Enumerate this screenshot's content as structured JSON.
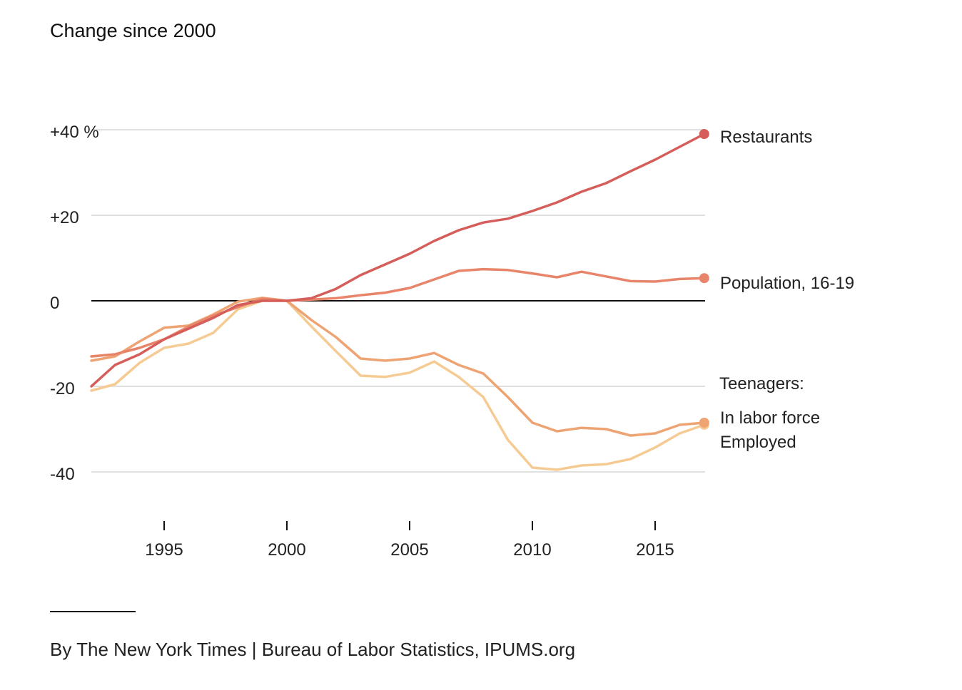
{
  "subtitle": "Change since 2000",
  "source": "By The New York Times | Bureau of Labor Statistics, IPUMS.org",
  "chart_data": {
    "type": "line",
    "title": "Change since 2000",
    "xlabel": "",
    "ylabel": "",
    "xlim": [
      1992,
      2017
    ],
    "ylim": [
      -40,
      40
    ],
    "y_ticks": [
      {
        "value": 40,
        "label": "+40 %"
      },
      {
        "value": 20,
        "label": "+20"
      },
      {
        "value": 0,
        "label": "0"
      },
      {
        "value": -20,
        "label": "-20"
      },
      {
        "value": -40,
        "label": "-40"
      }
    ],
    "x_ticks": [
      {
        "value": 1995,
        "label": "1995"
      },
      {
        "value": 2000,
        "label": "2000"
      },
      {
        "value": 2005,
        "label": "2005"
      },
      {
        "value": 2010,
        "label": "2010"
      },
      {
        "value": 2015,
        "label": "2015"
      }
    ],
    "x": [
      1992,
      1993,
      1994,
      1995,
      1996,
      1997,
      1998,
      1999,
      2000,
      2001,
      2002,
      2003,
      2004,
      2005,
      2006,
      2007,
      2008,
      2009,
      2010,
      2011,
      2012,
      2013,
      2014,
      2015,
      2016,
      2017
    ],
    "series": [
      {
        "name": "Restaurants",
        "color": "#d55e5a",
        "values": [
          -20,
          -15,
          -12.5,
          -9,
          -6.5,
          -4,
          -1,
          0,
          0,
          0.6,
          2.8,
          6,
          8.5,
          11,
          14,
          16.5,
          18.3,
          19.2,
          21,
          23,
          25.5,
          27.5,
          30.3,
          33,
          36,
          39
        ]
      },
      {
        "name": "Population, 16-19",
        "color": "#e8846a",
        "values": [
          -13,
          -12.5,
          -11,
          -9,
          -6,
          -3.5,
          -1.5,
          0.5,
          0,
          0.3,
          0.6,
          1.3,
          1.9,
          3,
          5,
          7,
          7.4,
          7.2,
          6.4,
          5.5,
          6.8,
          5.7,
          4.6,
          4.5,
          5.1,
          5.3
        ]
      },
      {
        "name": "In labor force",
        "color": "#eea373",
        "values": [
          -14,
          -13,
          -9.5,
          -6.3,
          -5.8,
          -3.2,
          -0.2,
          0.7,
          0,
          -4.5,
          -8.5,
          -13.5,
          -14,
          -13.5,
          -12.2,
          -15,
          -17,
          -22.5,
          -28.5,
          -30.5,
          -29.7,
          -30,
          -31.5,
          -31,
          -29,
          -28.5
        ]
      },
      {
        "name": "Employed",
        "color": "#f5cb93",
        "values": [
          -21,
          -19.5,
          -14.5,
          -11,
          -10,
          -7.5,
          -2,
          0,
          0,
          -6,
          -11.8,
          -17.5,
          -17.8,
          -16.8,
          -14.2,
          -17.8,
          -22.5,
          -32.5,
          -39,
          -39.5,
          -38.5,
          -38.2,
          -37,
          -34.3,
          -31,
          -29
        ]
      }
    ],
    "labels": {
      "restaurants": "Restaurants",
      "population": "Population, 16-19",
      "teenagers": "Teenagers:",
      "labor_force": "In labor force",
      "employed": "Employed"
    },
    "legend": "direct labels at right"
  }
}
